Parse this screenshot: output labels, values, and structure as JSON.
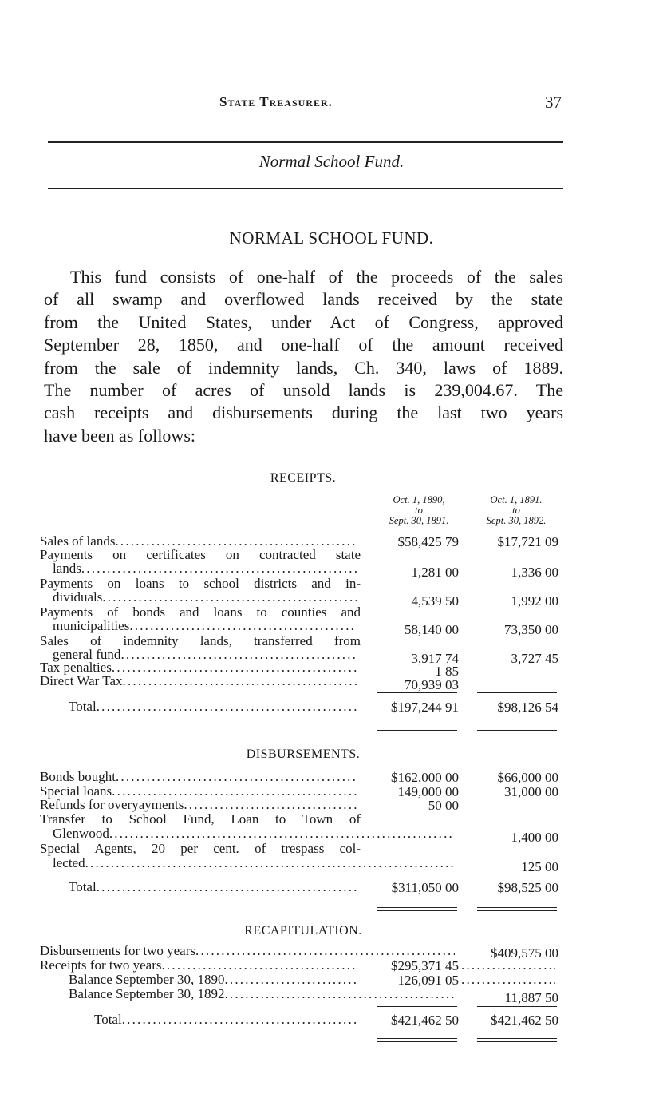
{
  "header": {
    "running_title": "State Treasurer.",
    "page_number": "37",
    "section_title": "Normal School Fund."
  },
  "title": "NORMAL SCHOOL FUND.",
  "paragraph": [
    "This fund consists of one-half of the proceeds of the sales",
    "of all swamp and overflowed lands received by the state",
    "from the United States, under Act of Congress, approved",
    "September 28, 1850, and one-half of the amount received",
    "from the sale of indemnity lands, Ch. 340, laws of 1889.",
    "The number of acres of unsold lands is 239,004.67.  The",
    "cash receipts and disbursements during the last two years",
    "have been as follows:"
  ],
  "columns": [
    {
      "line1": "Oct. 1, 1890,",
      "line2": "to",
      "line3": "Sept. 30, 1891."
    },
    {
      "line1": "Oct. 1, 1891.",
      "line2": "to",
      "line3": "Sept. 30, 1892."
    }
  ],
  "receipts": {
    "heading": "RECEIPTS.",
    "rows": [
      {
        "label": [
          "Sales of lands"
        ],
        "values": [
          "$58,425 79",
          "$17,721 09"
        ]
      },
      {
        "label": [
          "Payments on certificates on contracted state",
          "lands"
        ],
        "values": [
          "1,281 00",
          "1,336 00"
        ]
      },
      {
        "label": [
          "Payments on loans to school districts and in-",
          "dividuals"
        ],
        "values": [
          "4,539 50",
          "1,992 00"
        ]
      },
      {
        "label": [
          "Payments of bonds and loans to counties and",
          "municipalities"
        ],
        "values": [
          "58,140 00",
          "73,350 00"
        ]
      },
      {
        "label": [
          "Sales of indemnity lands, transferred from",
          "general fund"
        ],
        "values": [
          "3,917 74",
          "3,727 45"
        ]
      },
      {
        "label": [
          "Tax penalties"
        ],
        "values": [
          "1 85",
          ""
        ]
      },
      {
        "label": [
          "Direct War Tax"
        ],
        "values": [
          "70,939 03",
          ""
        ]
      }
    ],
    "total": {
      "label": "Total",
      "values": [
        "$197,244 91",
        "$98,126 54"
      ]
    }
  },
  "disbursements": {
    "heading": "DISBURSEMENTS.",
    "rows": [
      {
        "label": [
          "Bonds bought"
        ],
        "values": [
          "$162,000 00",
          "$66,000 00"
        ]
      },
      {
        "label": [
          "Special loans"
        ],
        "values": [
          "149,000 00",
          "31,000 00"
        ]
      },
      {
        "label": [
          "Refunds for overyayments"
        ],
        "values": [
          "50 00",
          ""
        ]
      },
      {
        "label": [
          "Transfer to School Fund, Loan to Town of",
          "Glenwood"
        ],
        "values": [
          "",
          "1,400 00"
        ]
      },
      {
        "label": [
          "Special Agents, 20 per cent. of trespass col-",
          "lected"
        ],
        "values": [
          "",
          "125 00"
        ]
      }
    ],
    "total": {
      "label": "Total",
      "values": [
        "$311,050 00",
        "$98,525 00"
      ]
    }
  },
  "recapitulation": {
    "heading": "RECAPITULATION.",
    "rows": [
      {
        "label": [
          "Disbursements for two years"
        ],
        "values": [
          "",
          "$409,575 00"
        ]
      },
      {
        "label": [
          "Receipts for two years"
        ],
        "values": [
          "$295,371 45",
          ""
        ]
      },
      {
        "label": [
          "Balance September 30, 1890"
        ],
        "values": [
          "126,091 05",
          ""
        ]
      },
      {
        "label": [
          "Balance September 30, 1892"
        ],
        "values": [
          "",
          "11,887 50"
        ]
      }
    ],
    "total": {
      "label": "Total",
      "values": [
        "$421,462 50",
        "$421,462 50"
      ]
    }
  }
}
